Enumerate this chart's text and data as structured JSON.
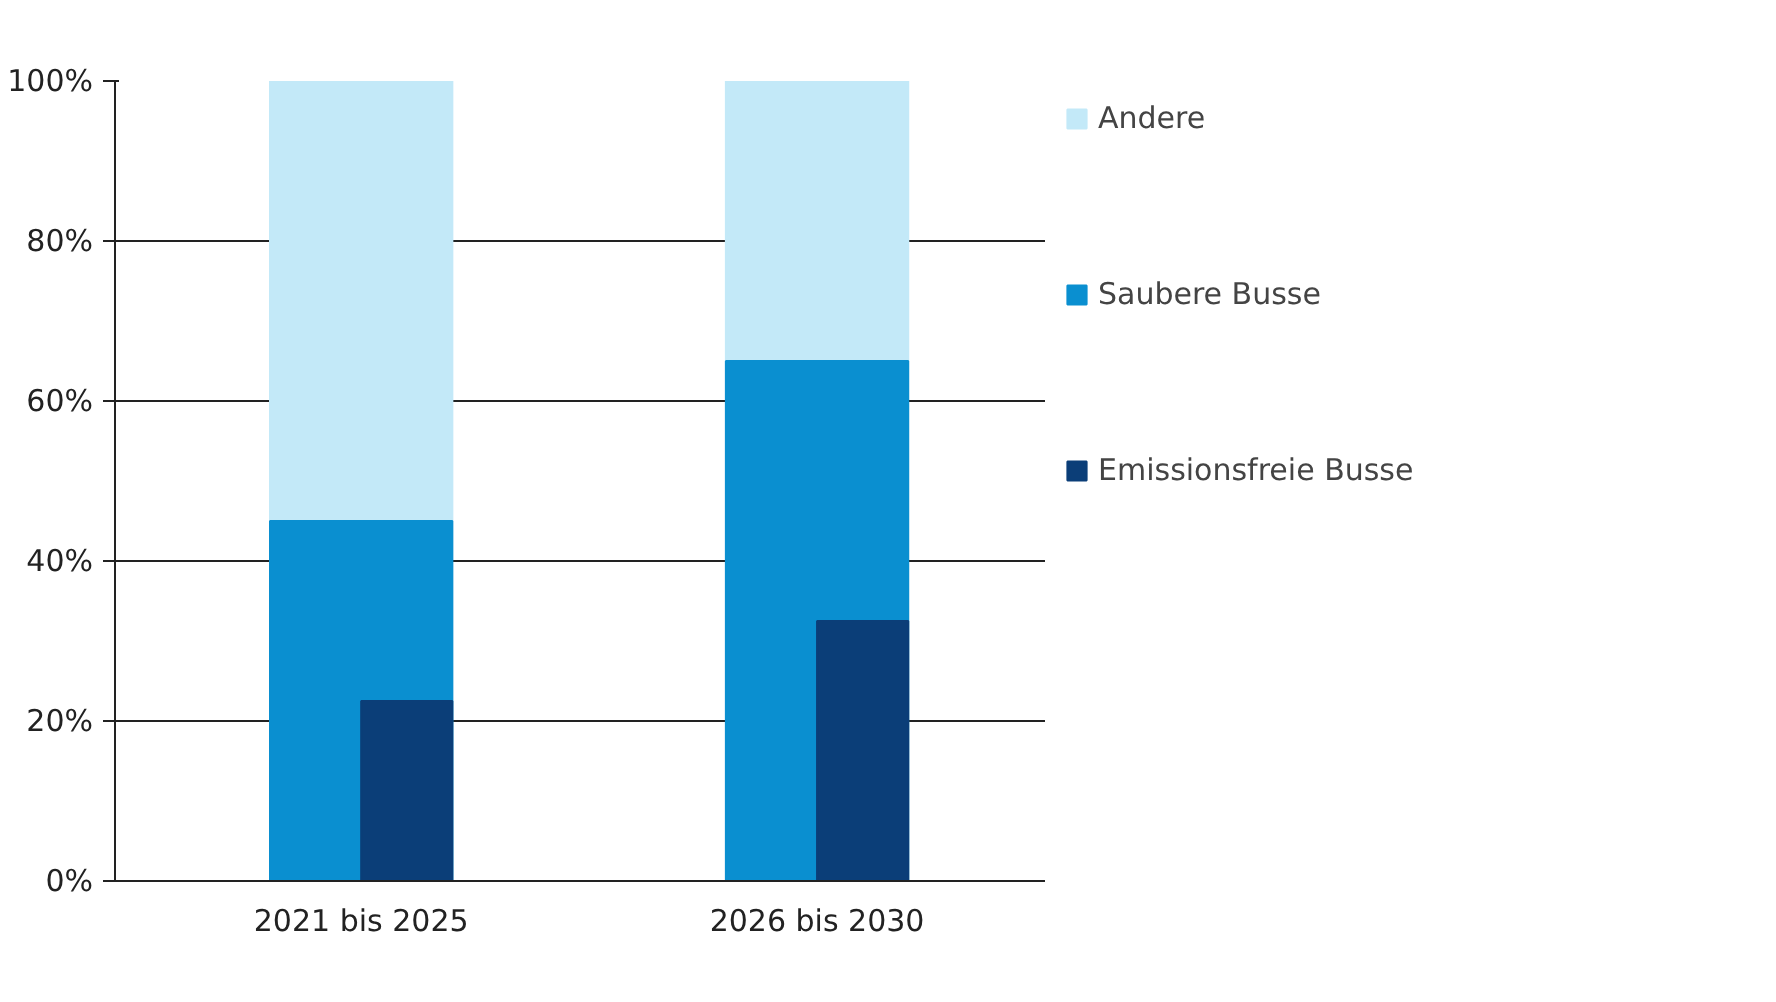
{
  "chart_data": {
    "type": "bar",
    "categories": [
      "2021 bis 2025",
      "2026 bis 2030"
    ],
    "series": [
      {
        "name": "Andere",
        "color": "#c3e9f8",
        "values": [
          55,
          35
        ],
        "base": [
          45,
          65
        ]
      },
      {
        "name": "Saubere Busse",
        "color": "#0a8fd0",
        "values": [
          45,
          65
        ],
        "base": [
          0,
          0
        ]
      },
      {
        "name": "Emissionsfreie Busse",
        "color": "#0b3e78",
        "values": [
          22.5,
          32.5
        ],
        "base": [
          0,
          0
        ]
      }
    ],
    "ylim": [
      0,
      100
    ],
    "yticks": [
      {
        "value": 0,
        "label": "0%"
      },
      {
        "value": 20,
        "label": "20%"
      },
      {
        "value": 40,
        "label": "40%"
      },
      {
        "value": 60,
        "label": "60%"
      },
      {
        "value": 80,
        "label": "80%"
      },
      {
        "value": 100,
        "label": "100%"
      }
    ],
    "grid": "y",
    "legend": "right"
  }
}
